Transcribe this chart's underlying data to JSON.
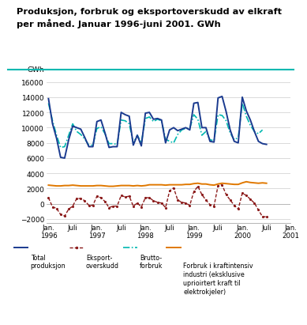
{
  "title": "Produksjon, forbruk og eksportoverskudd av elkraft\nper måned. Januar 1996-juni 2001. GWh",
  "ylabel": "GWh",
  "ylim": [
    -2500,
    17000
  ],
  "yticks": [
    -2000,
    0,
    2000,
    4000,
    6000,
    8000,
    10000,
    12000,
    14000,
    16000
  ],
  "xtick_labels": [
    "Jan.\n1996",
    "Juli",
    "Jan.\n1997",
    "Juli",
    "Jan.\n1998",
    "Juli",
    "Jan.\n1999",
    "Juli",
    "Jan.\n2000",
    "Juli",
    "Jan.\n2001"
  ],
  "xtick_positions": [
    0,
    6,
    12,
    18,
    24,
    30,
    36,
    42,
    48,
    54,
    60
  ],
  "total_produksjon": [
    13800,
    10500,
    8600,
    6100,
    6000,
    8400,
    10200,
    10000,
    9800,
    8700,
    7500,
    7500,
    10800,
    11000,
    9300,
    7400,
    7500,
    7500,
    12000,
    11700,
    11500,
    7700,
    9000,
    7600,
    11900,
    12000,
    11100,
    11200,
    11000,
    8000,
    9700,
    10000,
    9600,
    9800,
    10000,
    9700,
    13200,
    13300,
    10000,
    10000,
    8200,
    8100,
    13900,
    14100,
    12100,
    9700,
    8200,
    8000,
    14000,
    12200,
    11000,
    9500,
    8200,
    7900,
    7800
  ],
  "eksport_overskudd": [
    800,
    -400,
    -600,
    -1400,
    -1600,
    -700,
    -300,
    700,
    700,
    400,
    -200,
    -200,
    1000,
    800,
    300,
    -500,
    -300,
    -300,
    1100,
    900,
    1000,
    -300,
    100,
    -400,
    800,
    800,
    400,
    200,
    100,
    -500,
    1700,
    2100,
    500,
    200,
    100,
    -200,
    1600,
    2300,
    1200,
    500,
    -100,
    -300,
    2400,
    2500,
    1200,
    500,
    -200,
    -700,
    1400,
    1100,
    600,
    100,
    -800,
    -1700,
    -1700
  ],
  "brutto_forbruk": [
    13200,
    10900,
    9000,
    7400,
    7500,
    9000,
    10500,
    9500,
    9100,
    8500,
    7700,
    7700,
    9900,
    10100,
    9200,
    7900,
    7900,
    7800,
    11000,
    10900,
    10500,
    8000,
    9000,
    8000,
    11200,
    11400,
    10800,
    11100,
    10900,
    8500,
    8200,
    8000,
    9100,
    9700,
    9900,
    9900,
    11700,
    11100,
    9000,
    9500,
    8400,
    8300,
    11700,
    11600,
    10900,
    9300,
    8400,
    8700,
    13200,
    11500,
    10300,
    9500,
    9200,
    9700,
    null
  ],
  "forbruk_kraftintensiv": [
    2450,
    2400,
    2350,
    2350,
    2400,
    2400,
    2450,
    2400,
    2350,
    2350,
    2350,
    2350,
    2400,
    2400,
    2350,
    2300,
    2300,
    2350,
    2400,
    2400,
    2400,
    2350,
    2400,
    2350,
    2400,
    2500,
    2500,
    2500,
    2500,
    2450,
    2500,
    2500,
    2500,
    2500,
    2550,
    2550,
    2650,
    2700,
    2600,
    2600,
    2500,
    2450,
    2600,
    2700,
    2650,
    2600,
    2550,
    2550,
    2750,
    2900,
    2800,
    2750,
    2700,
    2750,
    2700
  ],
  "colors": {
    "total_produksjon": "#1a3a8f",
    "eksport_overskudd": "#8b1a1a",
    "brutto_forbruk": "#00b8b0",
    "forbruk_kraftintensiv": "#e07800"
  },
  "background_color": "#ffffff",
  "separator_color": "#00b8b0",
  "grid_color": "#cccccc"
}
